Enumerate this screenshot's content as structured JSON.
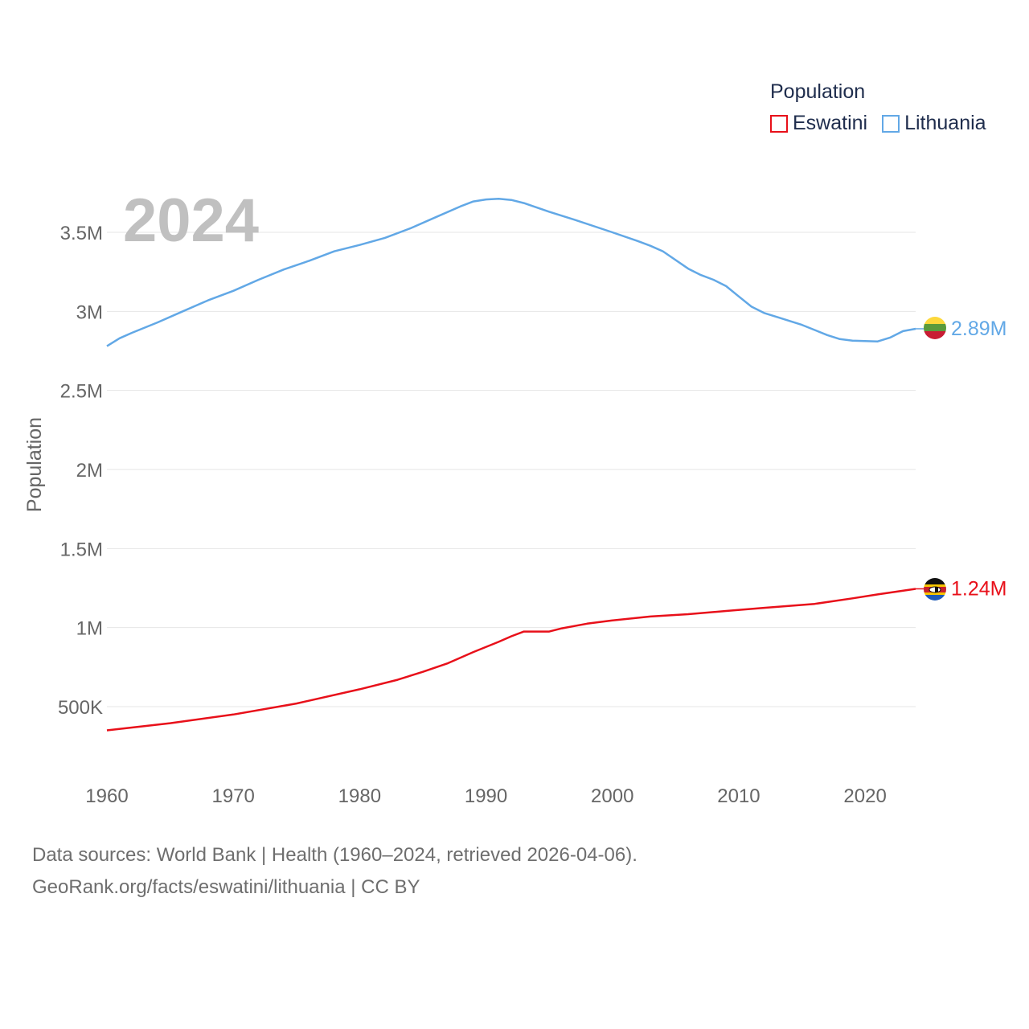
{
  "colors": {
    "eswatini": "#e8101a",
    "lithuania": "#62a8e6",
    "grid": "#e6e6e6",
    "axis_text": "#666666",
    "year_label": "#c0c0c0"
  },
  "legend": {
    "title": "Population",
    "items": [
      {
        "label": "Eswatini",
        "color": "#e8101a"
      },
      {
        "label": "Lithuania",
        "color": "#62a8e6"
      }
    ]
  },
  "year_label": "2024",
  "footer": {
    "line1": "Data sources: World Bank | Health (1960–2024, retrieved 2026-04-06).",
    "line2": "GeoRank.org/facts/eswatini/lithuania | CC BY"
  },
  "chart_data": {
    "type": "line",
    "title": "",
    "xlabel": "",
    "ylabel": "Population",
    "xlim": [
      1960,
      2024
    ],
    "ylim": [
      200000,
      3900000
    ],
    "x_ticks": [
      1960,
      1970,
      1980,
      1990,
      2000,
      2010,
      2020
    ],
    "x_tick_labels": [
      "1960",
      "1970",
      "1980",
      "1990",
      "2000",
      "2010",
      "2020"
    ],
    "y_ticks": [
      500000,
      1000000,
      1500000,
      2000000,
      2500000,
      3000000,
      3500000
    ],
    "y_tick_labels": [
      "500K",
      "1M",
      "1.5M",
      "2M",
      "2.5M",
      "3M",
      "3.5M"
    ],
    "grid": true,
    "legend_position": "top-right",
    "series": [
      {
        "name": "Eswatini",
        "color": "#e8101a",
        "end_label": "1.24M",
        "points": [
          [
            1960,
            350000
          ],
          [
            1965,
            395000
          ],
          [
            1970,
            450000
          ],
          [
            1975,
            520000
          ],
          [
            1980,
            610000
          ],
          [
            1983,
            670000
          ],
          [
            1985,
            720000
          ],
          [
            1987,
            775000
          ],
          [
            1989,
            845000
          ],
          [
            1991,
            910000
          ],
          [
            1992,
            945000
          ],
          [
            1993,
            975000
          ],
          [
            1995,
            975000
          ],
          [
            1996,
            995000
          ],
          [
            1998,
            1025000
          ],
          [
            2000,
            1045000
          ],
          [
            2003,
            1070000
          ],
          [
            2006,
            1085000
          ],
          [
            2009,
            1105000
          ],
          [
            2012,
            1125000
          ],
          [
            2016,
            1150000
          ],
          [
            2019,
            1185000
          ],
          [
            2021,
            1210000
          ],
          [
            2024,
            1245000
          ]
        ]
      },
      {
        "name": "Lithuania",
        "color": "#62a8e6",
        "end_label": "2.89M",
        "points": [
          [
            1960,
            2780000
          ],
          [
            1961,
            2830000
          ],
          [
            1962,
            2865000
          ],
          [
            1964,
            2930000
          ],
          [
            1966,
            3000000
          ],
          [
            1968,
            3070000
          ],
          [
            1970,
            3130000
          ],
          [
            1972,
            3200000
          ],
          [
            1974,
            3265000
          ],
          [
            1976,
            3320000
          ],
          [
            1978,
            3380000
          ],
          [
            1980,
            3420000
          ],
          [
            1982,
            3465000
          ],
          [
            1984,
            3525000
          ],
          [
            1986,
            3595000
          ],
          [
            1988,
            3665000
          ],
          [
            1989,
            3695000
          ],
          [
            1990,
            3708000
          ],
          [
            1991,
            3712000
          ],
          [
            1992,
            3705000
          ],
          [
            1993,
            3685000
          ],
          [
            1995,
            3630000
          ],
          [
            1997,
            3580000
          ],
          [
            2000,
            3500000
          ],
          [
            2002,
            3445000
          ],
          [
            2003,
            3415000
          ],
          [
            2004,
            3380000
          ],
          [
            2006,
            3270000
          ],
          [
            2007,
            3230000
          ],
          [
            2008,
            3200000
          ],
          [
            2009,
            3160000
          ],
          [
            2010,
            3095000
          ],
          [
            2011,
            3030000
          ],
          [
            2012,
            2990000
          ],
          [
            2013,
            2965000
          ],
          [
            2015,
            2915000
          ],
          [
            2017,
            2850000
          ],
          [
            2018,
            2825000
          ],
          [
            2019,
            2815000
          ],
          [
            2021,
            2810000
          ],
          [
            2022,
            2835000
          ],
          [
            2023,
            2875000
          ],
          [
            2024,
            2890000
          ]
        ]
      }
    ]
  }
}
